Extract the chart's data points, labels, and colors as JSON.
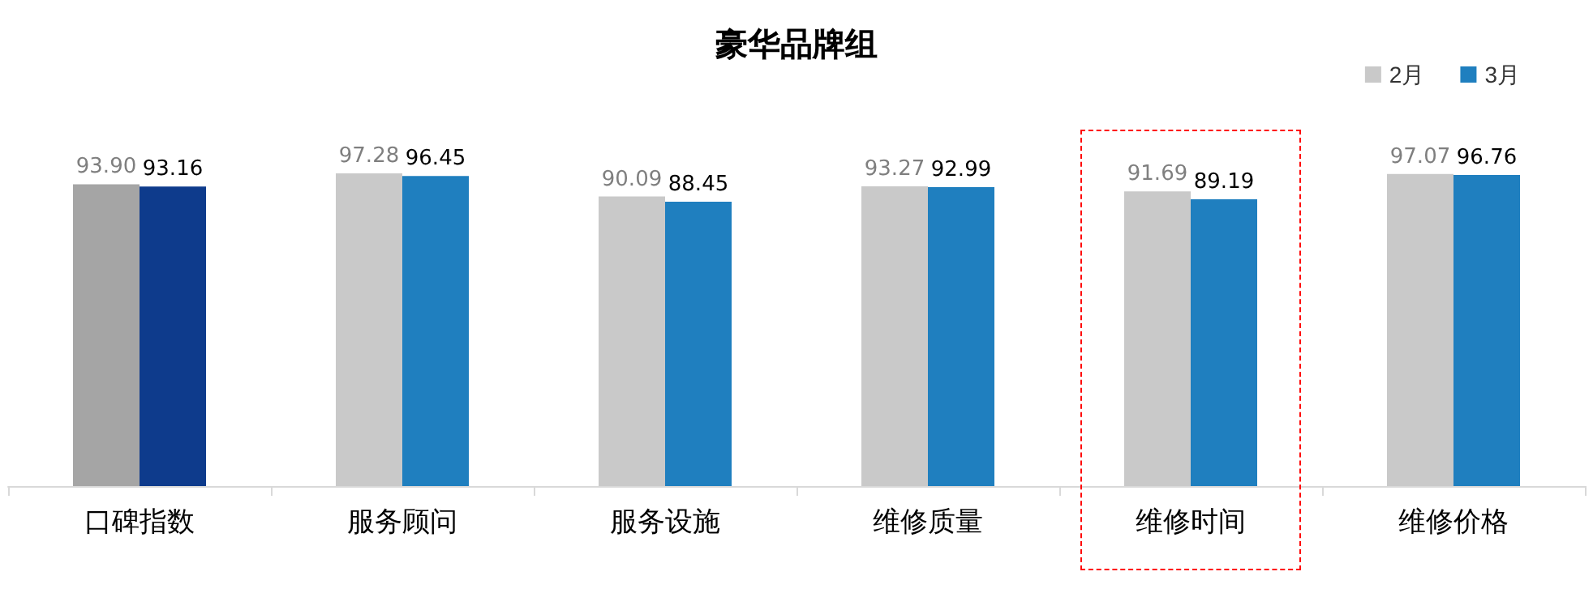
{
  "chart_data": {
    "type": "bar",
    "title": "豪华品牌组",
    "categories": [
      "口碑指数",
      "服务顾问",
      "服务设施",
      "维修质量",
      "维修时间",
      "维修价格"
    ],
    "series": [
      {
        "name": "2月",
        "color": "#c9c9c9",
        "colors": [
          "#a5a5a5",
          "#c9c9c9",
          "#c9c9c9",
          "#c9c9c9",
          "#c9c9c9",
          "#c9c9c9"
        ],
        "values": [
          93.9,
          97.28,
          90.09,
          93.27,
          91.69,
          97.07
        ],
        "value_labels": [
          "93.90",
          "97.28",
          "90.09",
          "93.27",
          "91.69",
          "97.07"
        ]
      },
      {
        "name": "3月",
        "color": "#1f7fbf",
        "colors": [
          "#0e3b8c",
          "#1f7fbf",
          "#1f7fbf",
          "#1f7fbf",
          "#1f7fbf",
          "#1f7fbf"
        ],
        "values": [
          93.16,
          96.45,
          88.45,
          92.99,
          89.19,
          96.76
        ],
        "value_labels": [
          "93.16",
          "96.45",
          "88.45",
          "92.99",
          "89.19",
          "96.76"
        ]
      }
    ],
    "tick_labels": "x",
    "grid": false,
    "legend": "top right"
  }
}
